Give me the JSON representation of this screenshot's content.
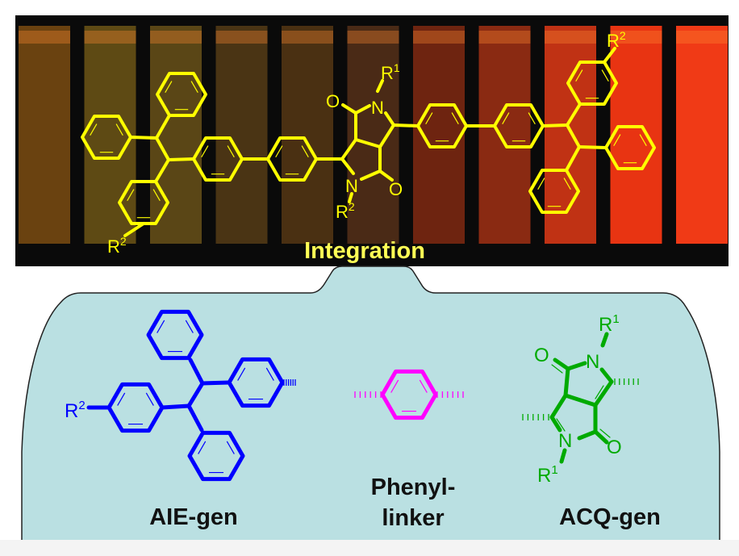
{
  "colors": {
    "photo_background": "#0a0a0a",
    "panel_fill": "#bae0e2",
    "molecule_top": "#ffff00",
    "aie_gen": "#0000ff",
    "phenyl_linker": "#ff00ff",
    "acq_gen": "#00aa00",
    "vial_gradient": [
      "#6a4210",
      "#5e4a14",
      "#5a4616",
      "#4a3414",
      "#4a3012",
      "#4a2a16",
      "#6e2410",
      "#8a2a12",
      "#c03214",
      "#e83412",
      "#f03a16"
    ]
  },
  "photo": {
    "title": "Integration",
    "vial_count": 11,
    "molecule_labels": {
      "r2_left": "R",
      "r2_left_sup": "2",
      "r1_top": "R",
      "r1_top_sup": "1",
      "r2_mid": "R",
      "r2_mid_sup": "2",
      "r2_right": "R",
      "r2_right_sup": "2",
      "n_top": "N",
      "n_bottom": "N",
      "o_top": "O",
      "o_bottom": "O"
    }
  },
  "panel": {
    "aie": {
      "label": "AIE-gen",
      "r": "R",
      "r_sup": "2"
    },
    "linker": {
      "label_line1": "Phenyl-",
      "label_line2": "linker"
    },
    "acq": {
      "label": "ACQ-gen",
      "r_top": "R",
      "r_top_sup": "1",
      "r_bottom": "R",
      "r_bottom_sup": "1",
      "n_top": "N",
      "n_bottom": "N",
      "o_top": "O",
      "o_bottom": "O"
    }
  }
}
